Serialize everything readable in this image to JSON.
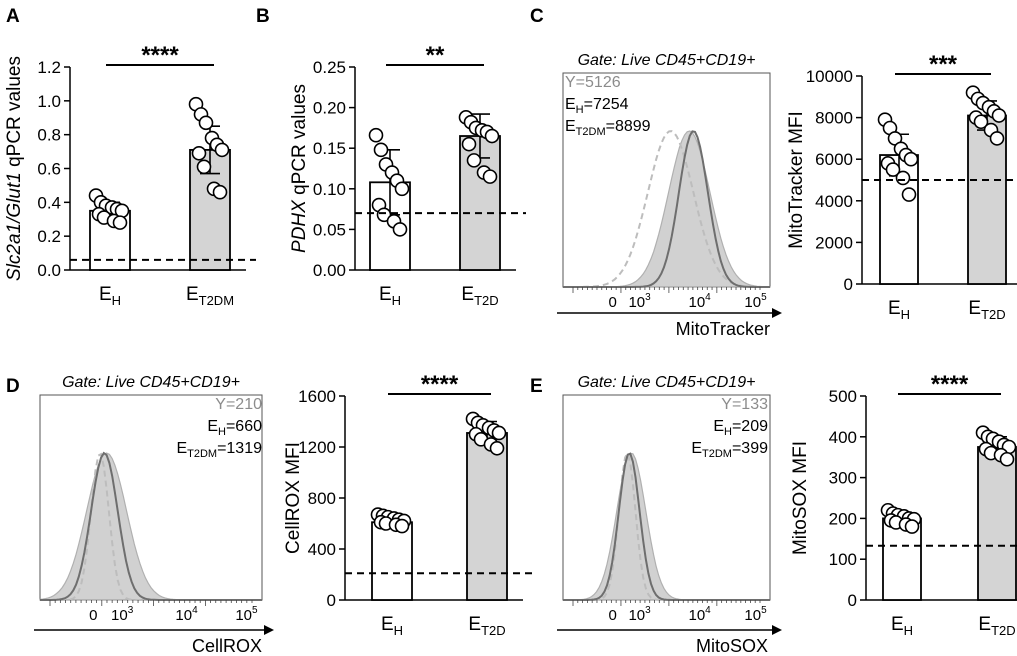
{
  "colors": {
    "ink": "#000000",
    "grey_bar": "#d4d4d4",
    "grey_text": "#8c8c8c",
    "hist_fill": "#cdcdcd",
    "hist_line_dark": "#6e6e6e",
    "hist_line_dash": "#bdbdbd"
  },
  "chart_data": [
    {
      "panel": "A",
      "type": "bar",
      "ylabel_parts": [
        {
          "t": "Slc2a1/Glut1",
          "italic": true
        },
        {
          "t": " qPCR values",
          "italic": false
        }
      ],
      "ylim": [
        0,
        1.2
      ],
      "yticks": [
        {
          "v": 0,
          "label": "0.0"
        },
        {
          "v": 0.2,
          "label": "0.2"
        },
        {
          "v": 0.4,
          "label": "0.4"
        },
        {
          "v": 0.6,
          "label": "0.6"
        },
        {
          "v": 0.8,
          "label": "0.8"
        },
        {
          "v": 1.0,
          "label": "1.0"
        },
        {
          "v": 1.2,
          "label": "1.2"
        }
      ],
      "groups": [
        {
          "base": "E",
          "sub": "H",
          "mean": 0.35,
          "sd": 0.05,
          "fill": "white",
          "points": [
            0.44,
            0.4,
            0.38,
            0.37,
            0.36,
            0.35,
            0.33,
            0.31,
            0.29,
            0.28
          ]
        },
        {
          "base": "E",
          "sub": "T2DM",
          "mean": 0.71,
          "sd": 0.14,
          "fill": "grey",
          "points": [
            0.98,
            0.92,
            0.87,
            0.78,
            0.74,
            0.71,
            0.69,
            0.61,
            0.48,
            0.46
          ]
        }
      ],
      "dashed_line": 0.06,
      "significance": "****"
    },
    {
      "panel": "B",
      "type": "bar",
      "ylabel_parts": [
        {
          "t": "PDHX",
          "italic": true
        },
        {
          "t": " qPCR values",
          "italic": false
        }
      ],
      "ylim": [
        0,
        0.25
      ],
      "yticks": [
        {
          "v": 0,
          "label": "0.00"
        },
        {
          "v": 0.05,
          "label": "0.05"
        },
        {
          "v": 0.1,
          "label": "0.10"
        },
        {
          "v": 0.15,
          "label": "0.15"
        },
        {
          "v": 0.2,
          "label": "0.20"
        },
        {
          "v": 0.25,
          "label": "0.25"
        }
      ],
      "groups": [
        {
          "base": "E",
          "sub": "H",
          "mean": 0.108,
          "sd": 0.04,
          "fill": "white",
          "points": [
            0.166,
            0.148,
            0.13,
            0.12,
            0.11,
            0.1,
            0.08,
            0.068,
            0.06,
            0.05
          ]
        },
        {
          "base": "E",
          "sub": "T2D",
          "mean": 0.165,
          "sd": 0.027,
          "fill": "grey",
          "points": [
            0.188,
            0.182,
            0.175,
            0.172,
            0.17,
            0.165,
            0.155,
            0.135,
            0.12,
            0.115
          ]
        }
      ],
      "dashed_line": 0.07,
      "significance": "**"
    },
    {
      "panel": "C",
      "type": "bar",
      "ylabel_parts": [
        {
          "t": "MitoTracker MFI",
          "italic": false
        }
      ],
      "ylim": [
        0,
        10000
      ],
      "yticks": [
        {
          "v": 0,
          "label": "0"
        },
        {
          "v": 2000,
          "label": "2000"
        },
        {
          "v": 4000,
          "label": "4000"
        },
        {
          "v": 6000,
          "label": "6000"
        },
        {
          "v": 8000,
          "label": "8000"
        },
        {
          "v": 10000,
          "label": "10000"
        }
      ],
      "groups": [
        {
          "base": "E",
          "sub": "H",
          "mean": 6200,
          "sd": 1000,
          "fill": "white",
          "points": [
            7900,
            7500,
            7000,
            6500,
            6200,
            6000,
            5800,
            5500,
            5100,
            4300
          ]
        },
        {
          "base": "E",
          "sub": "T2D",
          "mean": 8100,
          "sd": 700,
          "fill": "grey",
          "points": [
            9200,
            8900,
            8700,
            8500,
            8300,
            8100,
            8000,
            7800,
            7400,
            7000
          ]
        }
      ],
      "dashed_line": 5000,
      "significance": "***"
    },
    {
      "panel": "D",
      "type": "bar",
      "ylabel_parts": [
        {
          "t": "CellROX MFI",
          "italic": false
        }
      ],
      "ylim": [
        0,
        1600
      ],
      "yticks": [
        {
          "v": 0,
          "label": "0"
        },
        {
          "v": 400,
          "label": "400"
        },
        {
          "v": 800,
          "label": "800"
        },
        {
          "v": 1200,
          "label": "1200"
        },
        {
          "v": 1600,
          "label": "1600"
        }
      ],
      "groups": [
        {
          "base": "E",
          "sub": "H",
          "mean": 610,
          "sd": 40,
          "fill": "white",
          "points": [
            670,
            660,
            650,
            640,
            630,
            620,
            610,
            600,
            590,
            580
          ]
        },
        {
          "base": "E",
          "sub": "T2D",
          "mean": 1310,
          "sd": 90,
          "fill": "grey",
          "points": [
            1420,
            1390,
            1370,
            1350,
            1330,
            1310,
            1300,
            1260,
            1220,
            1190
          ]
        }
      ],
      "dashed_line": 210,
      "significance": "****"
    },
    {
      "panel": "E",
      "type": "bar",
      "ylabel_parts": [
        {
          "t": "MitoSOX MFI",
          "italic": false
        }
      ],
      "ylim": [
        0,
        500
      ],
      "yticks": [
        {
          "v": 0,
          "label": "0"
        },
        {
          "v": 100,
          "label": "100"
        },
        {
          "v": 200,
          "label": "200"
        },
        {
          "v": 300,
          "label": "300"
        },
        {
          "v": 400,
          "label": "400"
        },
        {
          "v": 500,
          "label": "500"
        }
      ],
      "groups": [
        {
          "base": "E",
          "sub": "H",
          "mean": 200,
          "sd": 15,
          "fill": "white",
          "points": [
            220,
            212,
            208,
            205,
            200,
            198,
            195,
            190,
            185,
            180
          ]
        },
        {
          "base": "E",
          "sub": "T2D",
          "mean": 375,
          "sd": 25,
          "fill": "grey",
          "points": [
            410,
            400,
            395,
            388,
            380,
            375,
            370,
            360,
            355,
            345
          ]
        }
      ],
      "dashed_line": 133,
      "significance": "****"
    }
  ],
  "histograms": [
    {
      "panel": "C",
      "gate": "Gate: Live CD45+CD19+",
      "xlabel": "MitoTracker",
      "legend": [
        {
          "base": "Y",
          "sub": "",
          "value": "5126",
          "grey": true
        },
        {
          "base": "E",
          "sub": "H",
          "value": "7254",
          "grey": false
        },
        {
          "base": "E",
          "sub": "T2DM",
          "value": "8899",
          "grey": false
        }
      ],
      "xticks": [
        {
          "label": "0",
          "sup": ""
        },
        {
          "label": "10",
          "sup": "3"
        },
        {
          "label": "10",
          "sup": "4"
        },
        {
          "label": "10",
          "sup": "5"
        }
      ],
      "peaks": {
        "dash": 0.52,
        "fill": 0.61,
        "line": 0.63
      },
      "widths": {
        "dash": 0.11,
        "fill": 0.1,
        "line": 0.07
      }
    },
    {
      "panel": "D",
      "gate": "Gate: Live CD45+CD19+",
      "xlabel": "CellROX",
      "legend": [
        {
          "base": "Y",
          "sub": "",
          "value": "210",
          "grey": true
        },
        {
          "base": "E",
          "sub": "H",
          "value": "660",
          "grey": false
        },
        {
          "base": "E",
          "sub": "T2DM",
          "value": "1319",
          "grey": false
        }
      ],
      "xticks": [
        {
          "label": "0",
          "sup": ""
        },
        {
          "label": "10",
          "sup": "3"
        },
        {
          "label": "10",
          "sup": "4"
        },
        {
          "label": "10",
          "sup": "5"
        }
      ],
      "peaks": {
        "dash": 0.27,
        "fill": 0.3,
        "line": 0.29
      },
      "widths": {
        "dash": 0.04,
        "fill": 0.09,
        "line": 0.06
      }
    },
    {
      "panel": "E",
      "gate": "Gate: Live CD45+CD19+",
      "xlabel": "MitoSOX",
      "legend": [
        {
          "base": "Y",
          "sub": "",
          "value": "133",
          "grey": true
        },
        {
          "base": "E",
          "sub": "H",
          "value": "209",
          "grey": false
        },
        {
          "base": "E",
          "sub": "T2DM",
          "value": "399",
          "grey": false
        }
      ],
      "xticks": [
        {
          "label": "0",
          "sup": ""
        },
        {
          "label": "10",
          "sup": "3"
        },
        {
          "label": "10",
          "sup": "4"
        },
        {
          "label": "10",
          "sup": "5"
        }
      ],
      "peaks": {
        "dash": 0.31,
        "fill": 0.33,
        "line": 0.32
      },
      "widths": {
        "dash": 0.04,
        "fill": 0.07,
        "line": 0.05
      }
    }
  ]
}
